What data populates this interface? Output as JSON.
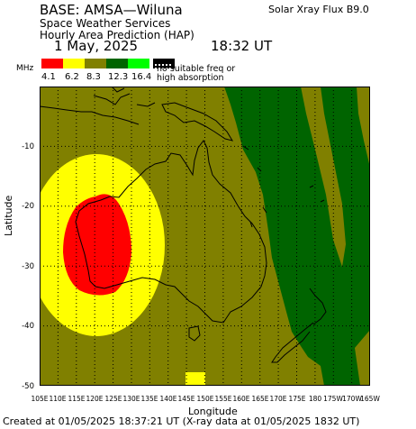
{
  "header": {
    "base": "BASE: AMSA—Wiluna",
    "service": "Space Weather Services",
    "product": "Hourly Area Prediction (HAP)",
    "date": "1 May, 2025",
    "time": "18:32 UT",
    "flux": "Solar Xray Flux B9.0"
  },
  "legend": {
    "unit": "MHz",
    "labels": [
      "4.1",
      "6.2",
      "8.3",
      "12.3",
      "16.4"
    ],
    "colors": [
      "#ff0000",
      "#ffff00",
      "#808000",
      "#006400",
      "#00ff00"
    ],
    "no_data_icon": "no-suitable-freq-pattern",
    "no_suitable": "no suitable freq or high absorption"
  },
  "map": {
    "ylabel": "Latitude",
    "xlabel": "Longitude",
    "lat_ticks": [
      "-10",
      "-20",
      "-30",
      "-40",
      "-50"
    ],
    "lon_ticks": [
      "105E",
      "110E",
      "115E",
      "120E",
      "125E",
      "130E",
      "135E",
      "140E",
      "145E",
      "150E",
      "155E",
      "160E",
      "165E",
      "170E",
      "175E",
      "180",
      "175W",
      "170W",
      "165W"
    ],
    "lon_range": [
      105,
      195
    ],
    "lat_range": [
      -50,
      0
    ]
  },
  "footer": {
    "created": "Created at 01/05/2025 18:37:21 UT (X-ray data at 01/05/2025 1832 UT)"
  }
}
